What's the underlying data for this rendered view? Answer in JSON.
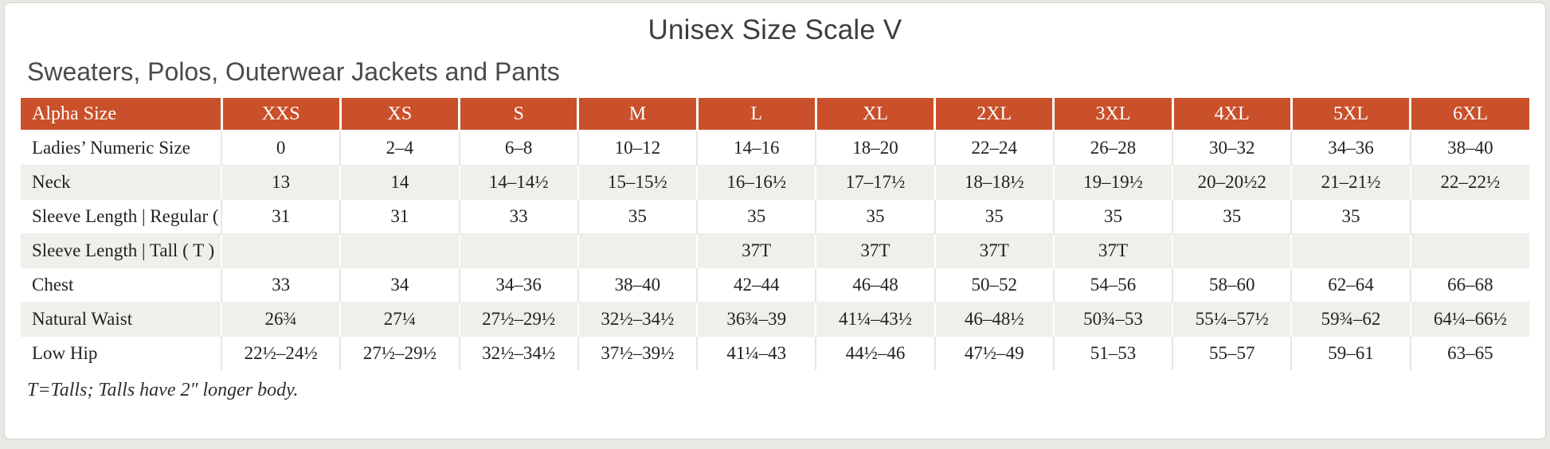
{
  "page": {
    "title": "Unisex Size Scale V",
    "subtitle": "Sweaters, Polos, Outerwear Jackets and Pants",
    "footnote": "T=Talls; Talls have 2″ longer body."
  },
  "colors": {
    "header_bg": "#c9502a",
    "header_text": "#ffffff",
    "row_alt_bg": "#f1efeb",
    "body_text": "#222222",
    "title_text": "#3d3d3d",
    "page_bg": "#e9e8e3"
  },
  "chart_data": {
    "type": "table",
    "columns": [
      "Alpha Size",
      "XXS",
      "XS",
      "S",
      "M",
      "L",
      "XL",
      "2XL",
      "3XL",
      "4XL",
      "5XL",
      "6XL"
    ],
    "rows": [
      {
        "label": "Ladies’ Numeric Size",
        "values": [
          "0",
          "2–4",
          "6–8",
          "10–12",
          "14–16",
          "18–20",
          "22–24",
          "26–28",
          "30–32",
          "34–36",
          "38–40"
        ]
      },
      {
        "label": "Neck",
        "values": [
          "13",
          "14",
          "14–14½",
          "15–15½",
          "16–16½",
          "17–17½",
          "18–18½",
          "19–19½",
          "20–20½2",
          "21–21½",
          "22–22½"
        ]
      },
      {
        "label": "Sleeve Length | Regular ( R )",
        "values": [
          "31",
          "31",
          "33",
          "35",
          "35",
          "35",
          "35",
          "35",
          "35",
          "35",
          ""
        ]
      },
      {
        "label": "Sleeve Length | Tall ( T )",
        "values": [
          "",
          "",
          "",
          "",
          "37T",
          "37T",
          "37T",
          "37T",
          "",
          "",
          ""
        ]
      },
      {
        "label": "Chest",
        "values": [
          "33",
          "34",
          "34–36",
          "38–40",
          "42–44",
          "46–48",
          "50–52",
          "54–56",
          "58–60",
          "62–64",
          "66–68"
        ]
      },
      {
        "label": "Natural Waist",
        "values": [
          "26¾",
          "27¼",
          "27½–29½",
          "32½–34½",
          "36¾–39",
          "41¼–43½",
          "46–48½",
          "50¾–53",
          "55¼–57½",
          "59¾–62",
          "64¼–66½"
        ]
      },
      {
        "label": "Low Hip",
        "values": [
          "22½–24½",
          "27½–29½",
          "32½–34½",
          "37½–39½",
          "41¼–43",
          "44½–46",
          "47½–49",
          "51–53",
          "55–57",
          "59–61",
          "63–65"
        ]
      }
    ]
  }
}
